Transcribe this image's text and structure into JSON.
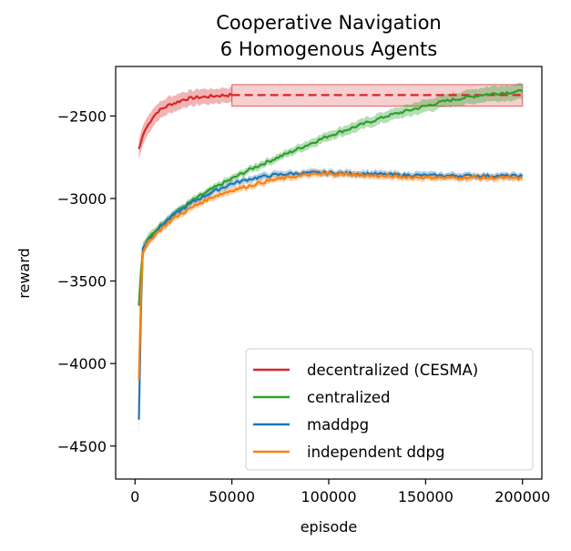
{
  "chart_data": {
    "type": "line",
    "title_line1": "Cooperative Navigation",
    "title_line2": "6 Homogenous Agents",
    "xlabel": "episode",
    "ylabel": "reward",
    "xlim": [
      -10000,
      210000
    ],
    "ylim": [
      -4700,
      -2200
    ],
    "xticks": [
      0,
      50000,
      100000,
      150000,
      200000
    ],
    "xtick_labels": [
      "0",
      "50000",
      "100000",
      "150000",
      "200000"
    ],
    "yticks": [
      -2500,
      -3000,
      -3500,
      -4000,
      -4500
    ],
    "ytick_labels": [
      "−2500",
      "−3000",
      "−3500",
      "−4000",
      "−4500"
    ],
    "grid": false,
    "legend_position": "lower-right",
    "series": [
      {
        "name": "decentralized (CESMA)",
        "color": "#d62728",
        "values": [
          [
            2000,
            -2700
          ],
          [
            3000,
            -2660
          ],
          [
            4000,
            -2620
          ],
          [
            5000,
            -2590
          ],
          [
            7000,
            -2550
          ],
          [
            9000,
            -2510
          ],
          [
            12000,
            -2470
          ],
          [
            15000,
            -2450
          ],
          [
            18000,
            -2430
          ],
          [
            21000,
            -2420
          ],
          [
            25000,
            -2400
          ],
          [
            30000,
            -2390
          ],
          [
            35000,
            -2385
          ],
          [
            40000,
            -2380
          ],
          [
            45000,
            -2375
          ],
          [
            50000,
            -2373
          ]
        ],
        "band_halfwidth": [
          60,
          60,
          60,
          58,
          56,
          54,
          52,
          50,
          50,
          48,
          48,
          46,
          46,
          45,
          45,
          45
        ],
        "dashed_from": 50000,
        "dashed_to": 200000,
        "dashed_value": -2373,
        "dashed_band": [
          -2310,
          -2440
        ]
      },
      {
        "name": "centralized",
        "color": "#2ca02c",
        "values": [
          [
            2000,
            -3650
          ],
          [
            3000,
            -3450
          ],
          [
            4000,
            -3320
          ],
          [
            6000,
            -3260
          ],
          [
            8000,
            -3230
          ],
          [
            10000,
            -3200
          ],
          [
            15000,
            -3140
          ],
          [
            20000,
            -3090
          ],
          [
            30000,
            -3010
          ],
          [
            40000,
            -2940
          ],
          [
            50000,
            -2880
          ],
          [
            60000,
            -2820
          ],
          [
            70000,
            -2770
          ],
          [
            80000,
            -2720
          ],
          [
            90000,
            -2670
          ],
          [
            100000,
            -2620
          ],
          [
            110000,
            -2580
          ],
          [
            120000,
            -2540
          ],
          [
            130000,
            -2500
          ],
          [
            140000,
            -2470
          ],
          [
            150000,
            -2440
          ],
          [
            160000,
            -2410
          ],
          [
            170000,
            -2390
          ],
          [
            180000,
            -2370
          ],
          [
            190000,
            -2360
          ],
          [
            200000,
            -2350
          ]
        ],
        "band_halfwidth": [
          40,
          40,
          35,
          30,
          28,
          25,
          22,
          20,
          20,
          20,
          20,
          22,
          22,
          24,
          26,
          28,
          30,
          32,
          34,
          36,
          38,
          40,
          42,
          44,
          46,
          48
        ]
      },
      {
        "name": "maddpg",
        "color": "#1f77b4",
        "values": [
          [
            2000,
            -4340
          ],
          [
            3000,
            -3700
          ],
          [
            4000,
            -3300
          ],
          [
            6000,
            -3270
          ],
          [
            8000,
            -3240
          ],
          [
            10000,
            -3210
          ],
          [
            15000,
            -3150
          ],
          [
            20000,
            -3100
          ],
          [
            30000,
            -3020
          ],
          [
            40000,
            -2960
          ],
          [
            50000,
            -2910
          ],
          [
            60000,
            -2880
          ],
          [
            70000,
            -2860
          ],
          [
            80000,
            -2850
          ],
          [
            90000,
            -2845
          ],
          [
            100000,
            -2845
          ],
          [
            110000,
            -2848
          ],
          [
            120000,
            -2850
          ],
          [
            130000,
            -2855
          ],
          [
            140000,
            -2858
          ],
          [
            150000,
            -2860
          ],
          [
            160000,
            -2862
          ],
          [
            170000,
            -2862
          ],
          [
            180000,
            -2863
          ],
          [
            190000,
            -2863
          ],
          [
            200000,
            -2864
          ]
        ],
        "band_halfwidth": [
          120,
          90,
          40,
          30,
          25,
          22,
          20,
          20,
          20,
          20,
          20,
          20,
          20,
          20,
          20,
          20,
          20,
          20,
          20,
          20,
          20,
          20,
          20,
          20,
          20,
          20
        ]
      },
      {
        "name": "independent ddpg",
        "color": "#ff7f0e",
        "values": [
          [
            2000,
            -4100
          ],
          [
            3000,
            -3600
          ],
          [
            4000,
            -3330
          ],
          [
            6000,
            -3280
          ],
          [
            8000,
            -3250
          ],
          [
            10000,
            -3220
          ],
          [
            15000,
            -3170
          ],
          [
            20000,
            -3120
          ],
          [
            30000,
            -3050
          ],
          [
            40000,
            -2990
          ],
          [
            50000,
            -2950
          ],
          [
            60000,
            -2920
          ],
          [
            70000,
            -2890
          ],
          [
            80000,
            -2870
          ],
          [
            90000,
            -2855
          ],
          [
            100000,
            -2850
          ],
          [
            110000,
            -2852
          ],
          [
            120000,
            -2860
          ],
          [
            130000,
            -2865
          ],
          [
            140000,
            -2870
          ],
          [
            150000,
            -2872
          ],
          [
            160000,
            -2873
          ],
          [
            170000,
            -2873
          ],
          [
            180000,
            -2874
          ],
          [
            190000,
            -2875
          ],
          [
            200000,
            -2878
          ]
        ],
        "band_halfwidth": [
          120,
          90,
          40,
          30,
          25,
          22,
          20,
          20,
          20,
          20,
          20,
          20,
          20,
          20,
          20,
          20,
          20,
          20,
          20,
          20,
          20,
          20,
          20,
          20,
          20,
          20
        ]
      }
    ]
  }
}
